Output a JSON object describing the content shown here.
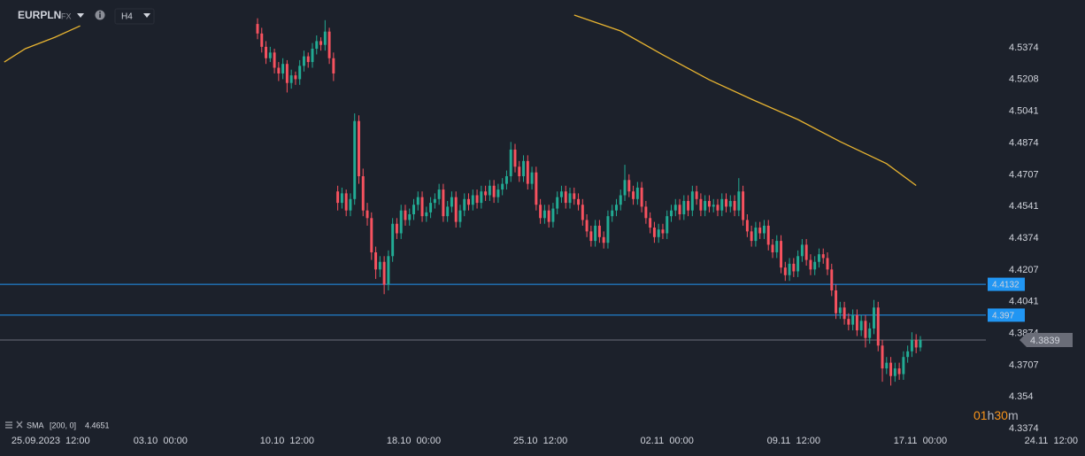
{
  "header": {
    "symbol": "EURPLN",
    "market": "FX",
    "timeframe": "H4"
  },
  "chart_data": {
    "type": "candlestick",
    "up_color": "#22ab94",
    "down_color": "#f7525f",
    "xlim": [
      -61,
      196
    ],
    "xticks": [
      {
        "value": -49,
        "label": "25.09.2023  12:00"
      },
      {
        "value": -23,
        "label": "03.10  00:00"
      },
      {
        "value": 7,
        "label": "10.10  12:00"
      },
      {
        "value": 37,
        "label": "18.10  00:00"
      },
      {
        "value": 67,
        "label": "25.10  12:00"
      },
      {
        "value": 97,
        "label": "02.11  00:00"
      },
      {
        "value": 127,
        "label": "09.11  12:00"
      },
      {
        "value": 157,
        "label": "17.11  00:00"
      },
      {
        "value": 188,
        "label": "24.11  12:00"
      }
    ],
    "ylim": [
      4.3374,
      4.5626
    ],
    "yticks": [
      4.5374,
      4.5208,
      4.5041,
      4.4874,
      4.4707,
      4.4541,
      4.4374,
      4.4207,
      4.4041,
      4.3874,
      4.3707,
      4.354,
      4.3374
    ],
    "grid": false,
    "open": [
      4.55,
      4.545,
      4.538,
      4.532,
      4.535,
      4.527,
      4.524,
      4.529,
      4.519,
      4.523,
      4.521,
      4.528,
      4.533,
      4.53,
      4.537,
      4.541,
      4.539,
      4.546,
      4.532,
      4.462,
      4.456,
      4.461,
      4.452,
      4.458,
      4.499,
      4.47,
      4.452,
      4.448,
      4.43,
      4.421,
      4.425,
      4.413,
      4.428,
      4.445,
      4.44,
      4.452,
      4.447,
      4.45,
      4.455,
      4.459,
      4.449,
      4.451,
      4.456,
      4.458,
      4.463,
      4.449,
      4.454,
      4.459,
      4.446,
      4.452,
      4.458,
      4.455,
      4.46,
      4.456,
      4.462,
      4.46,
      4.465,
      4.459,
      4.463,
      4.466,
      4.47,
      4.484,
      4.475,
      4.47,
      4.478,
      4.466,
      4.472,
      4.455,
      4.448,
      4.452,
      4.446,
      4.453,
      4.459,
      4.462,
      4.456,
      4.461,
      4.458,
      4.455,
      4.447,
      4.441,
      4.436,
      4.444,
      4.438,
      4.435,
      4.449,
      4.452,
      4.455,
      4.46,
      4.468,
      4.462,
      4.458,
      4.464,
      4.454,
      4.448,
      4.443,
      4.438,
      4.442,
      4.44,
      4.449,
      4.452,
      4.455,
      4.45,
      4.457,
      4.452,
      4.462,
      4.458,
      4.452,
      4.457,
      4.454,
      4.455,
      4.452,
      4.458,
      4.454,
      4.457,
      4.452,
      4.462,
      4.447,
      4.441,
      4.436,
      4.443,
      4.44,
      4.444,
      4.434,
      4.43,
      4.436,
      4.422,
      4.418,
      4.424,
      4.42,
      4.428,
      4.434,
      4.426,
      4.421,
      4.425,
      4.429,
      4.427,
      4.421,
      4.41,
      4.398,
      4.401,
      4.395,
      4.392,
      4.397,
      4.389,
      4.394,
      4.385,
      4.39,
      4.401,
      4.381,
      4.369,
      4.372,
      4.365,
      4.369,
      4.366,
      4.375,
      4.378,
      4.384,
      4.38
    ],
    "high": [
      4.553,
      4.548,
      4.541,
      4.538,
      4.537,
      4.53,
      4.532,
      4.531,
      4.526,
      4.525,
      4.531,
      4.536,
      4.535,
      4.54,
      4.544,
      4.543,
      4.552,
      4.548,
      4.535,
      4.465,
      4.464,
      4.463,
      4.461,
      4.503,
      4.502,
      4.474,
      4.456,
      4.451,
      4.433,
      4.428,
      4.428,
      4.431,
      4.448,
      4.448,
      4.455,
      4.455,
      4.453,
      4.458,
      4.462,
      4.462,
      4.454,
      4.459,
      4.461,
      4.466,
      4.466,
      4.457,
      4.462,
      4.462,
      4.455,
      4.461,
      4.461,
      4.463,
      4.463,
      4.465,
      4.465,
      4.468,
      4.468,
      4.466,
      4.469,
      4.473,
      4.488,
      4.487,
      4.478,
      4.481,
      4.481,
      4.475,
      4.475,
      4.458,
      4.455,
      4.455,
      4.456,
      4.462,
      4.465,
      4.465,
      4.464,
      4.464,
      4.461,
      4.458,
      4.45,
      4.444,
      4.447,
      4.447,
      4.441,
      4.452,
      4.455,
      4.458,
      4.463,
      4.476,
      4.471,
      4.465,
      4.467,
      4.467,
      4.457,
      4.451,
      4.446,
      4.445,
      4.445,
      4.452,
      4.455,
      4.458,
      4.458,
      4.46,
      4.46,
      4.465,
      4.465,
      4.461,
      4.46,
      4.46,
      4.458,
      4.458,
      4.461,
      4.461,
      4.46,
      4.46,
      4.469,
      4.465,
      4.45,
      4.444,
      4.446,
      4.446,
      4.447,
      4.447,
      4.437,
      4.439,
      4.439,
      4.425,
      4.427,
      4.427,
      4.431,
      4.437,
      4.437,
      4.429,
      4.428,
      4.432,
      4.432,
      4.43,
      4.424,
      4.413,
      4.404,
      4.404,
      4.398,
      4.4,
      4.4,
      4.397,
      4.397,
      4.393,
      4.405,
      4.404,
      4.384,
      4.375,
      4.375,
      4.372,
      4.372,
      4.378,
      4.381,
      4.388,
      4.387,
      4.386
    ],
    "low": [
      4.542,
      4.535,
      4.529,
      4.53,
      4.524,
      4.52,
      4.521,
      4.514,
      4.516,
      4.518,
      4.518,
      4.525,
      4.527,
      4.527,
      4.534,
      4.536,
      4.536,
      4.529,
      4.52,
      4.452,
      4.453,
      4.449,
      4.449,
      4.455,
      4.466,
      4.449,
      4.444,
      4.426,
      4.416,
      4.417,
      4.408,
      4.41,
      4.425,
      4.437,
      4.437,
      4.444,
      4.444,
      4.447,
      4.452,
      4.446,
      4.446,
      4.448,
      4.453,
      4.455,
      4.446,
      4.446,
      4.451,
      4.443,
      4.443,
      4.449,
      4.452,
      4.452,
      4.453,
      4.453,
      4.457,
      4.457,
      4.456,
      4.456,
      4.46,
      4.463,
      4.467,
      4.472,
      4.467,
      4.467,
      4.463,
      4.463,
      4.452,
      4.445,
      4.445,
      4.443,
      4.443,
      4.45,
      4.456,
      4.453,
      4.453,
      4.455,
      4.452,
      4.444,
      4.438,
      4.433,
      4.433,
      4.435,
      4.432,
      4.432,
      4.446,
      4.449,
      4.452,
      4.457,
      4.459,
      4.455,
      4.455,
      4.451,
      4.445,
      4.44,
      4.435,
      4.435,
      4.437,
      4.437,
      4.446,
      4.449,
      4.447,
      4.447,
      4.449,
      4.449,
      4.455,
      4.449,
      4.449,
      4.451,
      4.451,
      4.449,
      4.449,
      4.451,
      4.451,
      4.449,
      4.449,
      4.444,
      4.438,
      4.433,
      4.433,
      4.437,
      4.437,
      4.431,
      4.427,
      4.427,
      4.419,
      4.415,
      4.415,
      4.417,
      4.417,
      4.425,
      4.423,
      4.418,
      4.418,
      4.422,
      4.424,
      4.418,
      4.407,
      4.395,
      4.395,
      4.392,
      4.389,
      4.389,
      4.386,
      4.386,
      4.38,
      4.382,
      4.387,
      4.378,
      4.362,
      4.366,
      4.36,
      4.362,
      4.363,
      4.363,
      4.372,
      4.375,
      4.377,
      4.378
    ],
    "close": [
      4.545,
      4.538,
      4.532,
      4.535,
      4.527,
      4.524,
      4.529,
      4.519,
      4.523,
      4.521,
      4.528,
      4.533,
      4.53,
      4.537,
      4.541,
      4.539,
      4.546,
      4.532,
      4.524,
      4.456,
      4.461,
      4.452,
      4.458,
      4.499,
      4.47,
      4.452,
      4.448,
      4.43,
      4.421,
      4.425,
      4.413,
      4.428,
      4.445,
      4.44,
      4.452,
      4.447,
      4.45,
      4.455,
      4.459,
      4.449,
      4.451,
      4.456,
      4.458,
      4.463,
      4.449,
      4.454,
      4.459,
      4.446,
      4.452,
      4.458,
      4.455,
      4.46,
      4.456,
      4.462,
      4.46,
      4.465,
      4.459,
      4.463,
      4.466,
      4.47,
      4.484,
      4.475,
      4.47,
      4.478,
      4.466,
      4.472,
      4.455,
      4.448,
      4.452,
      4.446,
      4.453,
      4.459,
      4.462,
      4.456,
      4.461,
      4.458,
      4.455,
      4.447,
      4.441,
      4.436,
      4.444,
      4.438,
      4.435,
      4.449,
      4.452,
      4.455,
      4.46,
      4.468,
      4.462,
      4.458,
      4.464,
      4.454,
      4.448,
      4.443,
      4.438,
      4.442,
      4.44,
      4.449,
      4.452,
      4.455,
      4.45,
      4.457,
      4.452,
      4.462,
      4.458,
      4.452,
      4.457,
      4.454,
      4.455,
      4.452,
      4.458,
      4.454,
      4.457,
      4.452,
      4.462,
      4.447,
      4.441,
      4.436,
      4.443,
      4.44,
      4.444,
      4.434,
      4.43,
      4.436,
      4.422,
      4.418,
      4.424,
      4.42,
      4.428,
      4.434,
      4.426,
      4.421,
      4.425,
      4.429,
      4.427,
      4.421,
      4.41,
      4.398,
      4.401,
      4.395,
      4.392,
      4.397,
      4.389,
      4.394,
      4.385,
      4.39,
      4.401,
      4.381,
      4.369,
      4.372,
      4.365,
      4.369,
      4.366,
      4.375,
      4.378,
      4.384,
      4.38,
      4.384
    ],
    "overlays": [
      {
        "name": "SMA",
        "params": "[200, 0]",
        "value": 4.4651,
        "color": "#e8b431",
        "x": [
          -60,
          -55,
          -48,
          -42,
          null,
          75,
          86,
          96,
          107,
          117,
          128,
          138,
          149,
          156
        ],
        "values": [
          4.53,
          4.537,
          4.543,
          4.549,
          null,
          4.5547,
          4.5463,
          4.5338,
          4.5207,
          4.5105,
          4.4998,
          4.4882,
          4.4766,
          4.4651
        ]
      }
    ],
    "price_lines": [
      {
        "value": 4.4132,
        "color": "#2196f3"
      },
      {
        "value": 4.397,
        "color": "#2196f3"
      },
      {
        "value": 4.3839,
        "color": "#6a6d78"
      }
    ]
  },
  "countdown": [
    {
      "text": "01",
      "color": "#f7931a"
    },
    {
      "text": "h",
      "color": "#b2b5be"
    },
    {
      "text": "30",
      "color": "#f7931a"
    },
    {
      "text": "m",
      "color": "#b2b5be"
    }
  ]
}
